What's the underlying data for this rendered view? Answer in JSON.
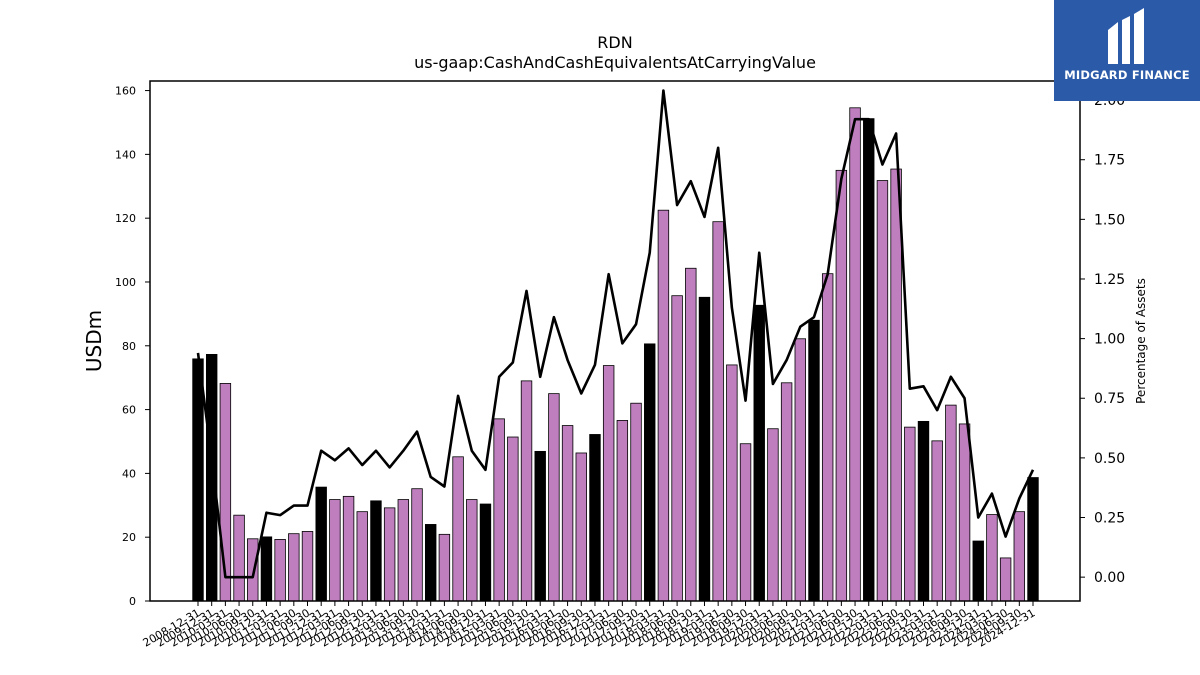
{
  "chart_data": {
    "type": "bar",
    "title": "RDN",
    "subtitle": "us-gaap:CashAndCashEquivalentsAtCarryingValue",
    "ylabel": "USDm",
    "y2label": "Percentage of Assets",
    "ylim": [
      0,
      163
    ],
    "y2lim": [
      -0.1,
      2.08
    ],
    "yticks": [
      0,
      20,
      40,
      60,
      80,
      100,
      120,
      140,
      160
    ],
    "y2ticks": [
      "0.00",
      "0.25",
      "0.50",
      "0.75",
      "1.00",
      "1.25",
      "1.50",
      "1.75",
      "2.00"
    ],
    "categories": [
      "2008-12-31",
      "2009-12-31",
      "2010-03-31",
      "2010-06-30",
      "2010-09-30",
      "2010-12-31",
      "2011-03-31",
      "2011-06-30",
      "2011-09-30",
      "2011-12-31",
      "2012-03-31",
      "2012-06-30",
      "2012-09-30",
      "2012-12-31",
      "2013-03-31",
      "2013-06-30",
      "2013-09-30",
      "2013-12-31",
      "2014-03-31",
      "2014-06-30",
      "2014-09-30",
      "2014-12-31",
      "2015-03-31",
      "2015-06-30",
      "2015-09-30",
      "2015-12-31",
      "2016-03-31",
      "2016-06-30",
      "2016-09-30",
      "2016-12-31",
      "2017-03-31",
      "2017-06-30",
      "2017-09-30",
      "2017-12-31",
      "2018-03-31",
      "2018-06-30",
      "2018-09-30",
      "2018-12-31",
      "2019-03-31",
      "2019-06-30",
      "2019-09-30",
      "2019-12-31",
      "2020-03-31",
      "2020-06-30",
      "2020-09-30",
      "2020-12-31",
      "2021-03-31",
      "2021-06-30",
      "2021-09-30",
      "2021-12-31",
      "2022-03-31",
      "2022-06-30",
      "2022-09-30",
      "2022-12-31",
      "2023-03-31",
      "2023-06-30",
      "2023-09-30",
      "2023-12-31",
      "2024-03-31",
      "2024-06-30",
      "2024-09-30",
      "2024-12-31"
    ],
    "series": [
      {
        "type": "bar",
        "values": [
          75.9,
          77.3,
          68.2,
          26.9,
          19.5,
          20.1,
          19.3,
          21.1,
          21.8,
          35.7,
          31.8,
          32.8,
          28.0,
          31.4,
          29.2,
          31.8,
          35.2,
          24.0,
          20.9,
          45.2,
          31.8,
          30.4,
          57.1,
          51.4,
          69.0,
          46.9,
          65.0,
          55.0,
          46.4,
          52.2,
          73.8,
          56.6,
          62.0,
          80.6,
          122.5,
          95.7,
          104.3,
          95.2,
          118.9,
          74.0,
          49.3,
          92.7,
          54.0,
          68.4,
          82.2,
          88.0,
          102.6,
          135.0,
          154.6,
          151.2,
          131.8,
          135.4,
          54.5,
          56.3,
          50.2,
          61.4,
          55.5,
          18.8,
          27.1,
          13.5,
          28.0,
          38.7
        ],
        "colors": [
          "#000000",
          "#000000",
          "#bf7fbf",
          "#bf7fbf",
          "#bf7fbf",
          "#000000",
          "#bf7fbf",
          "#bf7fbf",
          "#bf7fbf",
          "#000000",
          "#bf7fbf",
          "#bf7fbf",
          "#bf7fbf",
          "#000000",
          "#bf7fbf",
          "#bf7fbf",
          "#bf7fbf",
          "#000000",
          "#bf7fbf",
          "#bf7fbf",
          "#bf7fbf",
          "#000000",
          "#bf7fbf",
          "#bf7fbf",
          "#bf7fbf",
          "#000000",
          "#bf7fbf",
          "#bf7fbf",
          "#bf7fbf",
          "#000000",
          "#bf7fbf",
          "#bf7fbf",
          "#bf7fbf",
          "#000000",
          "#bf7fbf",
          "#bf7fbf",
          "#bf7fbf",
          "#000000",
          "#bf7fbf",
          "#bf7fbf",
          "#bf7fbf",
          "#000000",
          "#bf7fbf",
          "#bf7fbf",
          "#bf7fbf",
          "#000000",
          "#bf7fbf",
          "#bf7fbf",
          "#bf7fbf",
          "#000000",
          "#bf7fbf",
          "#bf7fbf",
          "#bf7fbf",
          "#000000",
          "#bf7fbf",
          "#bf7fbf",
          "#bf7fbf",
          "#000000",
          "#bf7fbf",
          "#bf7fbf",
          "#bf7fbf",
          "#000000"
        ]
      },
      {
        "type": "line",
        "axis": "right",
        "color": "#000000",
        "values": [
          0.94,
          0.5,
          0.0,
          0.0,
          0.0,
          0.27,
          0.26,
          0.3,
          0.3,
          0.53,
          0.49,
          0.54,
          0.47,
          0.53,
          0.46,
          0.53,
          0.61,
          0.42,
          0.38,
          0.76,
          0.53,
          0.45,
          0.84,
          0.9,
          1.2,
          0.84,
          1.09,
          0.91,
          0.77,
          0.89,
          1.27,
          0.98,
          1.06,
          1.36,
          2.04,
          1.56,
          1.66,
          1.51,
          1.8,
          1.13,
          0.74,
          1.36,
          0.81,
          0.91,
          1.05,
          1.09,
          1.27,
          1.67,
          1.92,
          1.92,
          1.73,
          1.86,
          0.79,
          0.8,
          0.7,
          0.84,
          0.75,
          0.25,
          0.35,
          0.17,
          0.33,
          0.45
        ]
      }
    ]
  },
  "logo": {
    "text": "MIDGARD FINANCE"
  }
}
